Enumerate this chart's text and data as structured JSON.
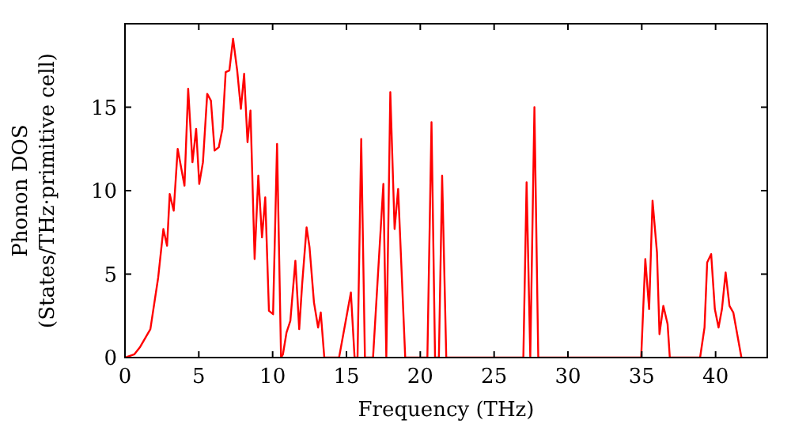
{
  "chart_data": {
    "type": "line",
    "xlabel": "Frequency (THz)",
    "ylabel": "Phonon DOS\n(States/THz·primitive cell)",
    "xlim": [
      0,
      43.5
    ],
    "ylim": [
      0,
      20
    ],
    "xticks": [
      0,
      5,
      10,
      15,
      20,
      25,
      30,
      35,
      40
    ],
    "yticks": [
      0,
      5,
      10,
      15
    ],
    "grid": false,
    "marker": "none",
    "line_style": "solid",
    "series": [
      {
        "color": "#ff0000",
        "x": [
          0,
          0.64,
          1.0,
          1.72,
          2.25,
          2.6,
          2.85,
          3.03,
          3.3,
          3.57,
          4.03,
          4.28,
          4.57,
          4.82,
          5.03,
          5.28,
          5.57,
          5.82,
          6.07,
          6.35,
          6.6,
          6.82,
          7.07,
          7.32,
          7.6,
          7.85,
          8.07,
          8.3,
          8.5,
          8.78,
          9.03,
          9.28,
          9.5,
          9.75,
          10.03,
          10.3,
          10.57,
          10.7,
          10.94,
          11.2,
          11.54,
          11.8,
          12.0,
          12.3,
          12.5,
          12.8,
          13.08,
          13.26,
          13.5,
          14.5,
          15.3,
          15.55,
          15.75,
          16.0,
          16.25,
          16.8,
          17.5,
          17.7,
          17.97,
          18.26,
          18.5,
          18.98,
          20.48,
          20.76,
          21.0,
          21.26,
          21.48,
          21.76,
          26.98,
          27.2,
          27.45,
          27.73,
          27.99,
          34.96,
          35.24,
          35.5,
          35.73,
          36.03,
          36.2,
          36.46,
          36.75,
          36.9,
          38.95,
          39.25,
          39.43,
          39.7,
          39.95,
          40.2,
          40.43,
          40.68,
          40.94,
          41.2,
          41.75
        ],
        "values": [
          0,
          0.2,
          0.6,
          1.7,
          4.8,
          7.7,
          6.7,
          9.8,
          8.8,
          12.5,
          10.3,
          16.1,
          11.7,
          13.7,
          10.4,
          11.7,
          15.8,
          15.4,
          12.4,
          12.6,
          13.7,
          17.1,
          17.2,
          19.1,
          17.2,
          14.9,
          17.0,
          12.9,
          14.8,
          5.9,
          10.9,
          7.2,
          9.6,
          2.8,
          2.6,
          12.8,
          0,
          0.2,
          1.5,
          2.2,
          5.8,
          1.7,
          4.4,
          7.8,
          6.6,
          3.3,
          1.8,
          2.7,
          0,
          0,
          3.9,
          0,
          0,
          13.1,
          0,
          0,
          10.4,
          0,
          15.9,
          7.7,
          10.1,
          0,
          0,
          14.1,
          0,
          0,
          10.9,
          0,
          0,
          10.5,
          0,
          15.0,
          0,
          0,
          5.9,
          2.9,
          9.4,
          6.3,
          1.4,
          3.1,
          2.0,
          0,
          0,
          1.8,
          5.7,
          6.2,
          2.9,
          1.8,
          2.9,
          5.1,
          3.1,
          2.7,
          0
        ]
      }
    ]
  }
}
